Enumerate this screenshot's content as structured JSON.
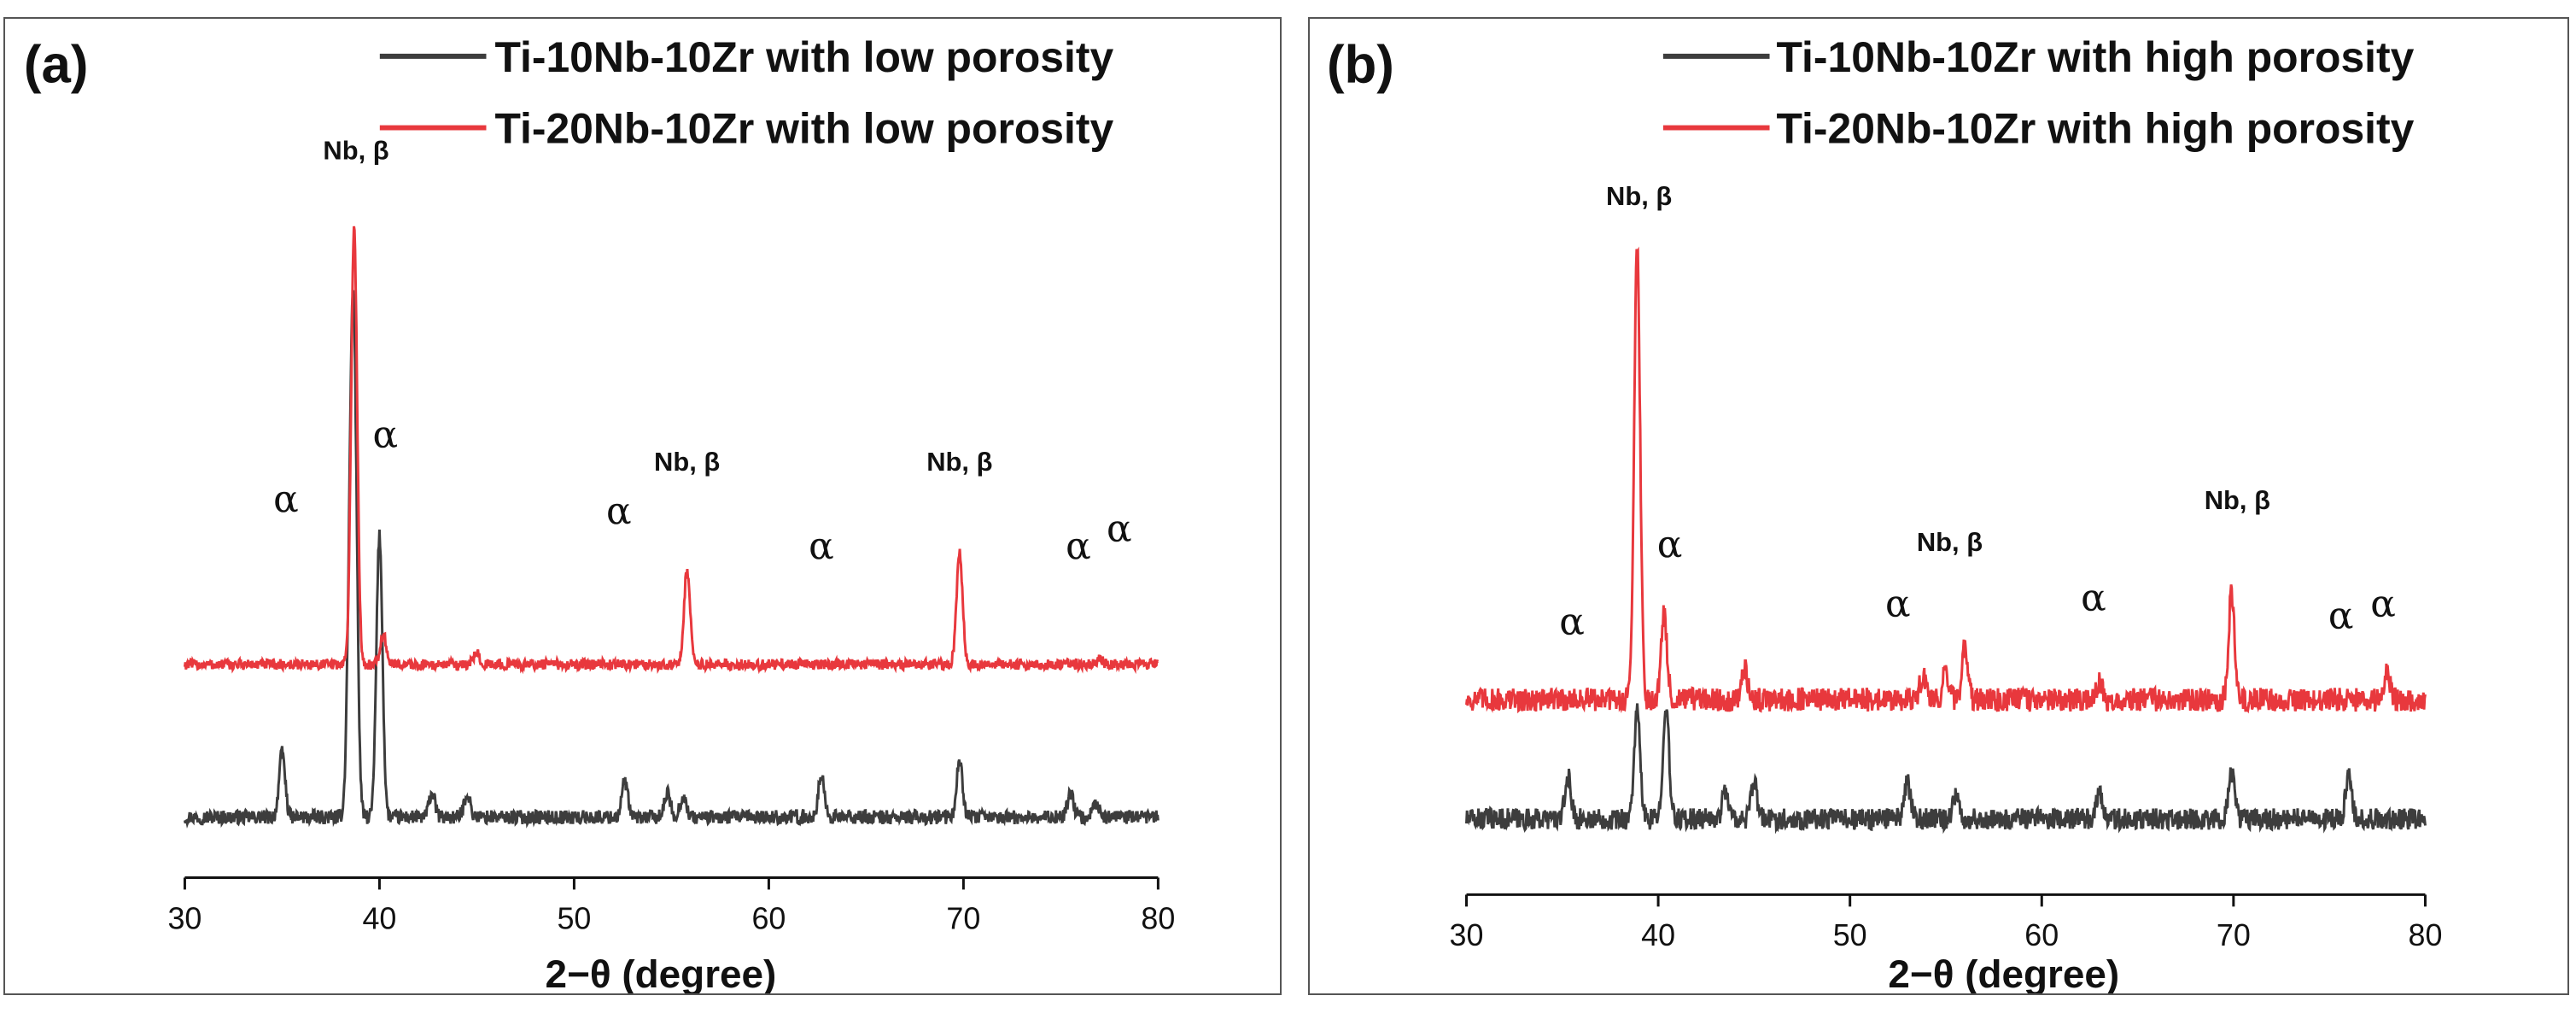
{
  "colors": {
    "series_black": "#3d3d3d",
    "series_red": "#e8383d",
    "axis": "#111111"
  },
  "chart_data": [
    {
      "type": "line",
      "panel_label": "(a)",
      "xlabel": "2−θ (degree)",
      "ylabel": "",
      "xlim": [
        30,
        80
      ],
      "xticks": [
        30,
        40,
        50,
        60,
        70,
        80
      ],
      "y_axis_shown": false,
      "grid": false,
      "legend_position": "top-right",
      "series": [
        {
          "name": "Ti-10Nb-10Zr with low porosity",
          "color": "#3d3d3d",
          "baseline": 0.0,
          "noise": 0.012,
          "peaks": [
            [
              35.0,
              0.11
            ],
            [
              38.5,
              0.37
            ],
            [
              38.7,
              0.7
            ],
            [
              40.0,
              0.48
            ],
            [
              42.7,
              0.04
            ],
            [
              44.5,
              0.04
            ],
            [
              52.6,
              0.06
            ],
            [
              54.8,
              0.04
            ],
            [
              55.6,
              0.035
            ],
            [
              62.7,
              0.07
            ],
            [
              69.8,
              0.095
            ],
            [
              75.5,
              0.04
            ],
            [
              76.8,
              0.025
            ]
          ]
        },
        {
          "name": "Ti-20Nb-10Zr with low porosity",
          "color": "#e8383d",
          "baseline": 0.26,
          "noise": 0.009,
          "peaks": [
            [
              38.7,
              0.74
            ],
            [
              40.2,
              0.05
            ],
            [
              45.0,
              0.02
            ],
            [
              55.8,
              0.16
            ],
            [
              69.8,
              0.19
            ],
            [
              77.0,
              0.01
            ]
          ]
        }
      ],
      "annotations": [
        {
          "text": "Nb, β",
          "x": 38.8,
          "y": 1.12,
          "kind": "nb"
        },
        {
          "text": "α",
          "x": 40.3,
          "y": 0.63,
          "kind": "alpha"
        },
        {
          "text": "α",
          "x": 35.2,
          "y": 0.52,
          "kind": "alpha"
        },
        {
          "text": "Nb, β",
          "x": 55.8,
          "y": 0.59,
          "kind": "nb"
        },
        {
          "text": "α",
          "x": 52.3,
          "y": 0.5,
          "kind": "alpha"
        },
        {
          "text": "α",
          "x": 62.7,
          "y": 0.44,
          "kind": "alpha"
        },
        {
          "text": "Nb, β",
          "x": 69.8,
          "y": 0.59,
          "kind": "nb"
        },
        {
          "text": "α",
          "x": 75.9,
          "y": 0.44,
          "kind": "alpha"
        },
        {
          "text": "α",
          "x": 78.0,
          "y": 0.47,
          "kind": "alpha"
        }
      ]
    },
    {
      "type": "line",
      "panel_label": "(b)",
      "xlabel": "2−θ (degree)",
      "ylabel": "",
      "xlim": [
        30,
        80
      ],
      "xticks": [
        30,
        40,
        50,
        60,
        70,
        80
      ],
      "y_axis_shown": false,
      "grid": false,
      "legend_position": "top-right",
      "series": [
        {
          "name": "Ti-10Nb-10Zr with high porosity",
          "color": "#3d3d3d",
          "baseline": 0.0,
          "noise": 0.018,
          "peaks": [
            [
              35.3,
              0.07
            ],
            [
              38.9,
              0.18
            ],
            [
              40.4,
              0.19
            ],
            [
              43.5,
              0.05
            ],
            [
              45.0,
              0.06
            ],
            [
              53.0,
              0.06
            ],
            [
              55.5,
              0.04
            ],
            [
              63.0,
              0.05
            ],
            [
              69.9,
              0.08
            ],
            [
              76.0,
              0.07
            ]
          ]
        },
        {
          "name": "Ti-20Nb-10Zr with high porosity",
          "color": "#e8383d",
          "baseline": 0.2,
          "noise": 0.02,
          "peaks": [
            [
              38.9,
              0.76
            ],
            [
              40.3,
              0.14
            ],
            [
              44.5,
              0.05
            ],
            [
              53.8,
              0.04
            ],
            [
              55.0,
              0.05
            ],
            [
              56.0,
              0.09
            ],
            [
              63.0,
              0.03
            ],
            [
              69.9,
              0.18
            ],
            [
              78.0,
              0.05
            ]
          ]
        }
      ],
      "annotations": [
        {
          "text": "Nb, β",
          "x": 39.0,
          "y": 1.03,
          "kind": "nb"
        },
        {
          "text": "α",
          "x": 40.6,
          "y": 0.44,
          "kind": "alpha"
        },
        {
          "text": "α",
          "x": 35.5,
          "y": 0.31,
          "kind": "alpha"
        },
        {
          "text": "Nb, β",
          "x": 55.2,
          "y": 0.45,
          "kind": "nb"
        },
        {
          "text": "α",
          "x": 52.5,
          "y": 0.34,
          "kind": "alpha"
        },
        {
          "text": "α",
          "x": 62.7,
          "y": 0.35,
          "kind": "alpha"
        },
        {
          "text": "Nb, β",
          "x": 70.2,
          "y": 0.52,
          "kind": "nb"
        },
        {
          "text": "α",
          "x": 75.6,
          "y": 0.32,
          "kind": "alpha"
        },
        {
          "text": "α",
          "x": 77.8,
          "y": 0.34,
          "kind": "alpha"
        }
      ]
    }
  ]
}
